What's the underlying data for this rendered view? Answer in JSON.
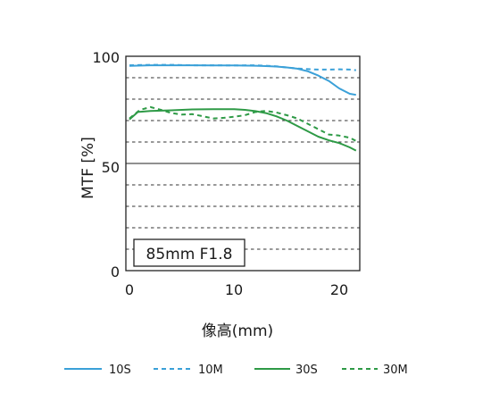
{
  "chart_data": {
    "type": "line",
    "title": "",
    "xlabel": "像高(mm)",
    "ylabel": "MTF [%]",
    "xlim": [
      0,
      21.6
    ],
    "ylim": [
      0,
      100
    ],
    "x_ticks": [
      "0",
      "10",
      "20"
    ],
    "y_ticks": [
      "0",
      "50",
      "100"
    ],
    "grid": "horizontal dashed every 10%",
    "annotation": "85mm F1.8",
    "legend_position": "bottom",
    "series": [
      {
        "name": "10S",
        "color": "#3aa0d8",
        "style": "solid",
        "points": [
          [
            0,
            95.5
          ],
          [
            2,
            95.8
          ],
          [
            4,
            95.8
          ],
          [
            6,
            95.8
          ],
          [
            8,
            95.7
          ],
          [
            10,
            95.7
          ],
          [
            12,
            95.6
          ],
          [
            13,
            95.4
          ],
          [
            14,
            95.2
          ],
          [
            15,
            94.8
          ],
          [
            16,
            94.2
          ],
          [
            17,
            93
          ],
          [
            18,
            91
          ],
          [
            19,
            88.5
          ],
          [
            20,
            85
          ],
          [
            21,
            82.5
          ],
          [
            21.6,
            82
          ]
        ]
      },
      {
        "name": "10M",
        "color": "#3aa0d8",
        "style": "dashed",
        "points": [
          [
            0,
            95.8
          ],
          [
            2,
            96
          ],
          [
            4,
            96
          ],
          [
            6,
            95.8
          ],
          [
            8,
            95.8
          ],
          [
            10,
            95.7
          ],
          [
            12,
            95.8
          ],
          [
            13,
            95.6
          ],
          [
            14,
            95.3
          ],
          [
            15,
            94.8
          ],
          [
            16,
            94.3
          ],
          [
            17,
            94
          ],
          [
            18,
            93.8
          ],
          [
            19,
            93.8
          ],
          [
            20,
            93.9
          ],
          [
            21,
            93.8
          ],
          [
            21.6,
            93.5
          ]
        ]
      },
      {
        "name": "30S",
        "color": "#2e9a46",
        "style": "solid",
        "points": [
          [
            0,
            70.5
          ],
          [
            0.8,
            74
          ],
          [
            2,
            74.5
          ],
          [
            4,
            74.8
          ],
          [
            6,
            75.2
          ],
          [
            8,
            75.3
          ],
          [
            10,
            75.3
          ],
          [
            11,
            75
          ],
          [
            12,
            74.4
          ],
          [
            13,
            73.5
          ],
          [
            14,
            72
          ],
          [
            15,
            70
          ],
          [
            16,
            67.5
          ],
          [
            17,
            65
          ],
          [
            18,
            62.5
          ],
          [
            19,
            60.8
          ],
          [
            20,
            59.5
          ],
          [
            21,
            57.5
          ],
          [
            21.6,
            56
          ]
        ]
      },
      {
        "name": "30M",
        "color": "#2e9a46",
        "style": "dashed",
        "points": [
          [
            0,
            71
          ],
          [
            1,
            75
          ],
          [
            2,
            76.3
          ],
          [
            3,
            75
          ],
          [
            4,
            73.5
          ],
          [
            5,
            72.8
          ],
          [
            6,
            73
          ],
          [
            7,
            72
          ],
          [
            8,
            71
          ],
          [
            9,
            71.3
          ],
          [
            10,
            71.8
          ],
          [
            11,
            72.5
          ],
          [
            12,
            74
          ],
          [
            13,
            74.5
          ],
          [
            14,
            73.8
          ],
          [
            15,
            72.5
          ],
          [
            16,
            71
          ],
          [
            17,
            68.5
          ],
          [
            18,
            66
          ],
          [
            19,
            63.5
          ],
          [
            20,
            63
          ],
          [
            21,
            62
          ],
          [
            21.6,
            60.5
          ]
        ]
      }
    ]
  }
}
